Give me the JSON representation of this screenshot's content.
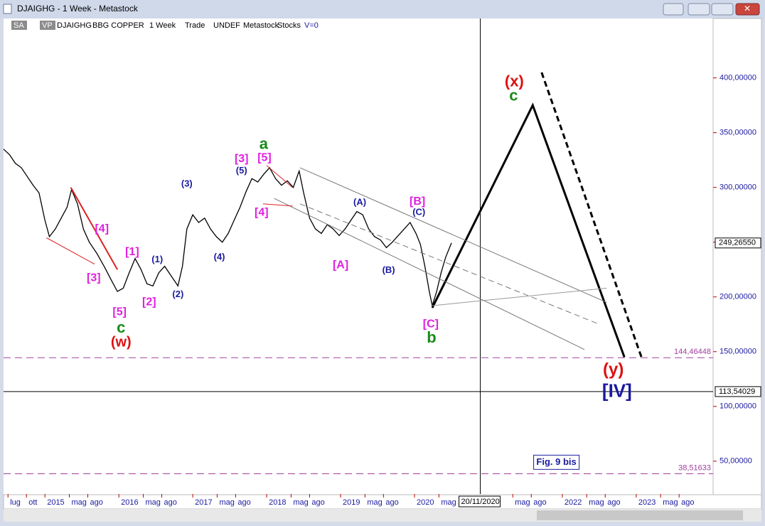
{
  "window": {
    "title": "DJAIGHG - 1 Week - Metastock",
    "toolbar": [
      "SA",
      "VP",
      "DJAIGHG",
      "BBG COPPER",
      "1 Week",
      "Trade",
      "UNDEF",
      "Metastock",
      "Stocks",
      "V=0"
    ]
  },
  "chart_data": {
    "type": "line",
    "x": [
      2014.44,
      2014.52,
      2014.6,
      2014.68,
      2014.76,
      2014.84,
      2014.92,
      2015.0,
      2015.06,
      2015.14,
      2015.22,
      2015.3,
      2015.36,
      2015.44,
      2015.52,
      2015.6,
      2015.7,
      2015.8,
      2015.9,
      2015.98,
      2016.06,
      2016.14,
      2016.22,
      2016.3,
      2016.38,
      2016.46,
      2016.54,
      2016.62,
      2016.72,
      2016.8,
      2016.86,
      2016.92,
      2017.0,
      2017.08,
      2017.16,
      2017.24,
      2017.32,
      2017.4,
      2017.48,
      2017.56,
      2017.64,
      2017.72,
      2017.8,
      2017.88,
      2017.96,
      2018.04,
      2018.12,
      2018.2,
      2018.28,
      2018.36,
      2018.44,
      2018.5,
      2018.58,
      2018.66,
      2018.74,
      2018.82,
      2018.9,
      2018.98,
      2019.06,
      2019.14,
      2019.22,
      2019.3,
      2019.38,
      2019.46,
      2019.54,
      2019.62,
      2019.7,
      2019.78,
      2019.86,
      2019.94,
      2020.02,
      2020.08,
      2020.14,
      2020.2,
      2020.24,
      2020.3,
      2020.36,
      2020.42,
      2020.5
    ],
    "values": [
      335,
      330,
      322,
      318,
      310,
      302,
      295,
      270,
      255,
      262,
      272,
      282,
      298,
      285,
      262,
      250,
      240,
      228,
      215,
      205,
      208,
      222,
      235,
      225,
      212,
      210,
      222,
      228,
      218,
      210,
      228,
      262,
      275,
      268,
      272,
      262,
      255,
      250,
      258,
      270,
      282,
      296,
      308,
      305,
      312,
      318,
      308,
      302,
      306,
      300,
      315,
      295,
      272,
      262,
      258,
      266,
      262,
      256,
      262,
      270,
      278,
      275,
      262,
      255,
      252,
      245,
      250,
      256,
      262,
      268,
      258,
      248,
      228,
      205,
      192,
      205,
      222,
      236,
      249.2655
    ],
    "color": "#000000",
    "last": {
      "value": 249.2655,
      "label": "249,26550"
    },
    "xlim": [
      2014.44,
      2024.04
    ],
    "xticks": [
      {
        "value": 2014.5,
        "label": "lug"
      },
      {
        "value": 2014.75,
        "label": "ott"
      },
      2015,
      {
        "value": 2015.33,
        "label": "mag"
      },
      {
        "value": 2015.58,
        "label": "ago"
      },
      2016,
      {
        "value": 2016.33,
        "label": "mag"
      },
      {
        "value": 2016.58,
        "label": "ago"
      },
      2017,
      {
        "value": 2017.33,
        "label": "mag"
      },
      {
        "value": 2017.58,
        "label": "ago"
      },
      2018,
      {
        "value": 2018.33,
        "label": "mag"
      },
      {
        "value": 2018.58,
        "label": "ago"
      },
      2019,
      {
        "value": 2019.33,
        "label": "mag"
      },
      {
        "value": 2019.58,
        "label": "ago"
      },
      2020,
      {
        "value": 2020.33,
        "label": "mag"
      },
      {
        "value": 2021.33,
        "label": "mag"
      },
      {
        "value": 2021.58,
        "label": "ago"
      },
      2022,
      {
        "value": 2022.33,
        "label": "mag"
      },
      {
        "value": 2022.58,
        "label": "ago"
      },
      2023,
      {
        "value": 2023.33,
        "label": "mag"
      },
      {
        "value": 2023.58,
        "label": "ago"
      }
    ],
    "ylim": [
      20,
      440
    ],
    "yticks": [
      {
        "value": 50,
        "label": "50,00000"
      },
      {
        "value": 100,
        "label": "100,00000"
      },
      {
        "value": 150,
        "label": "150,00000"
      },
      {
        "value": 200,
        "label": "200,00000"
      },
      {
        "value": 250,
        "label": "250,00000"
      },
      {
        "value": 300,
        "label": "300,00000"
      },
      {
        "value": 350,
        "label": "350,00000"
      },
      {
        "value": 400,
        "label": "400,00000"
      }
    ],
    "crosshair": {
      "x": {
        "value": 2020.89,
        "label": "20/11/2020"
      },
      "y": {
        "value": 113.54029,
        "label": "113,54029"
      }
    },
    "levels": [
      {
        "value": 144.46448,
        "label": "144,46448",
        "color": "#a040a0"
      },
      {
        "value": 38.51633,
        "label": "38,51633",
        "color": "#a040a0"
      }
    ],
    "trendlines": [
      {
        "x": [
          2020.24,
          2021.6,
          2022.84
        ],
        "values": [
          190,
          375,
          145
        ],
        "color": "#000000",
        "width": 3,
        "dash": false
      },
      {
        "x": [
          2021.72,
          2023.07
        ],
        "values": [
          405,
          145
        ],
        "color": "#000000",
        "width": 3,
        "dash": true
      },
      {
        "x": [
          2018.45,
          2022.6
        ],
        "values": [
          318,
          195
        ],
        "color": "#777777",
        "width": 1,
        "dash": false
      },
      {
        "x": [
          2018.45,
          2022.5
        ],
        "values": [
          285,
          175
        ],
        "color": "#777777",
        "width": 1,
        "dash": true
      },
      {
        "x": [
          2018.1,
          2022.3
        ],
        "values": [
          290,
          152
        ],
        "color": "#777777",
        "width": 1,
        "dash": false
      },
      {
        "x": [
          2020.24,
          2022.6
        ],
        "values": [
          192,
          208
        ],
        "color": "#999999",
        "width": 1,
        "dash": false
      },
      {
        "x": [
          2015.35,
          2015.98
        ],
        "values": [
          300,
          225
        ],
        "color": "#dd2222",
        "width": 2,
        "dash": false
      },
      {
        "x": [
          2015.02,
          2015.67
        ],
        "values": [
          254,
          230
        ],
        "color": "#dd2222",
        "width": 1,
        "dash": false
      },
      {
        "x": [
          2018.0,
          2018.35
        ],
        "values": [
          320,
          300
        ],
        "color": "#dd2222",
        "width": 1,
        "dash": false
      },
      {
        "x": [
          2017.95,
          2018.35
        ],
        "values": [
          285,
          283
        ],
        "color": "#dd2222",
        "width": 1,
        "dash": false
      }
    ],
    "annotations": [
      {
        "text": "[4]",
        "x": 2015.77,
        "y": 262,
        "color": "#e020e0",
        "size": 16
      },
      {
        "text": "[3]",
        "x": 2015.66,
        "y": 217,
        "color": "#e020e0",
        "size": 16
      },
      {
        "text": "[1]",
        "x": 2016.18,
        "y": 241,
        "color": "#e020e0",
        "size": 16
      },
      {
        "text": "(1)",
        "x": 2016.52,
        "y": 234,
        "color": "#1a1aa0",
        "size": 13
      },
      {
        "text": "[5]",
        "x": 2016.01,
        "y": 186,
        "color": "#e020e0",
        "size": 16
      },
      {
        "text": "c",
        "x": 2016.03,
        "y": 171,
        "color": "#1a8a1a",
        "size": 22
      },
      {
        "text": "(w)",
        "x": 2016.03,
        "y": 158,
        "color": "#dd1111",
        "size": 20
      },
      {
        "text": "[2]",
        "x": 2016.41,
        "y": 195,
        "color": "#e020e0",
        "size": 16
      },
      {
        "text": "(2)",
        "x": 2016.8,
        "y": 202,
        "color": "#1a1aa0",
        "size": 13
      },
      {
        "text": "(3)",
        "x": 2016.92,
        "y": 303,
        "color": "#1a1aa0",
        "size": 13
      },
      {
        "text": "(4)",
        "x": 2017.36,
        "y": 236,
        "color": "#1a1aa0",
        "size": 13
      },
      {
        "text": "(5)",
        "x": 2017.66,
        "y": 315,
        "color": "#1a1aa0",
        "size": 13
      },
      {
        "text": "[3]",
        "x": 2017.66,
        "y": 326,
        "color": "#e020e0",
        "size": 16
      },
      {
        "text": "a",
        "x": 2017.96,
        "y": 339,
        "color": "#1a8a1a",
        "size": 22
      },
      {
        "text": "[5]",
        "x": 2017.97,
        "y": 327,
        "color": "#e020e0",
        "size": 16
      },
      {
        "text": "[4]",
        "x": 2017.93,
        "y": 277,
        "color": "#e020e0",
        "size": 16
      },
      {
        "text": "(A)",
        "x": 2019.26,
        "y": 286,
        "color": "#1a1aa0",
        "size": 13
      },
      {
        "text": "[A]",
        "x": 2019.0,
        "y": 229,
        "color": "#e020e0",
        "size": 16
      },
      {
        "text": "(B)",
        "x": 2019.65,
        "y": 224,
        "color": "#1a1aa0",
        "size": 13
      },
      {
        "text": "[B]",
        "x": 2020.04,
        "y": 287,
        "color": "#e020e0",
        "size": 16
      },
      {
        "text": "(C)",
        "x": 2020.06,
        "y": 277,
        "color": "#1a1aa0",
        "size": 13
      },
      {
        "text": "[C]",
        "x": 2020.22,
        "y": 175,
        "color": "#e020e0",
        "size": 16
      },
      {
        "text": "b",
        "x": 2020.23,
        "y": 162,
        "color": "#1a8a1a",
        "size": 22
      },
      {
        "text": "(x)",
        "x": 2021.35,
        "y": 396,
        "color": "#dd1111",
        "size": 22
      },
      {
        "text": "c",
        "x": 2021.34,
        "y": 383,
        "color": "#1a8a1a",
        "size": 22
      },
      {
        "text": "(y)",
        "x": 2022.69,
        "y": 133,
        "color": "#dd1111",
        "size": 24
      },
      {
        "text": "[IV]",
        "x": 2022.74,
        "y": 113,
        "color": "#1a1aa0",
        "size": 26
      }
    ],
    "note": {
      "text": "Fig. 9 bis",
      "x": 2021.92,
      "y": 49
    }
  }
}
